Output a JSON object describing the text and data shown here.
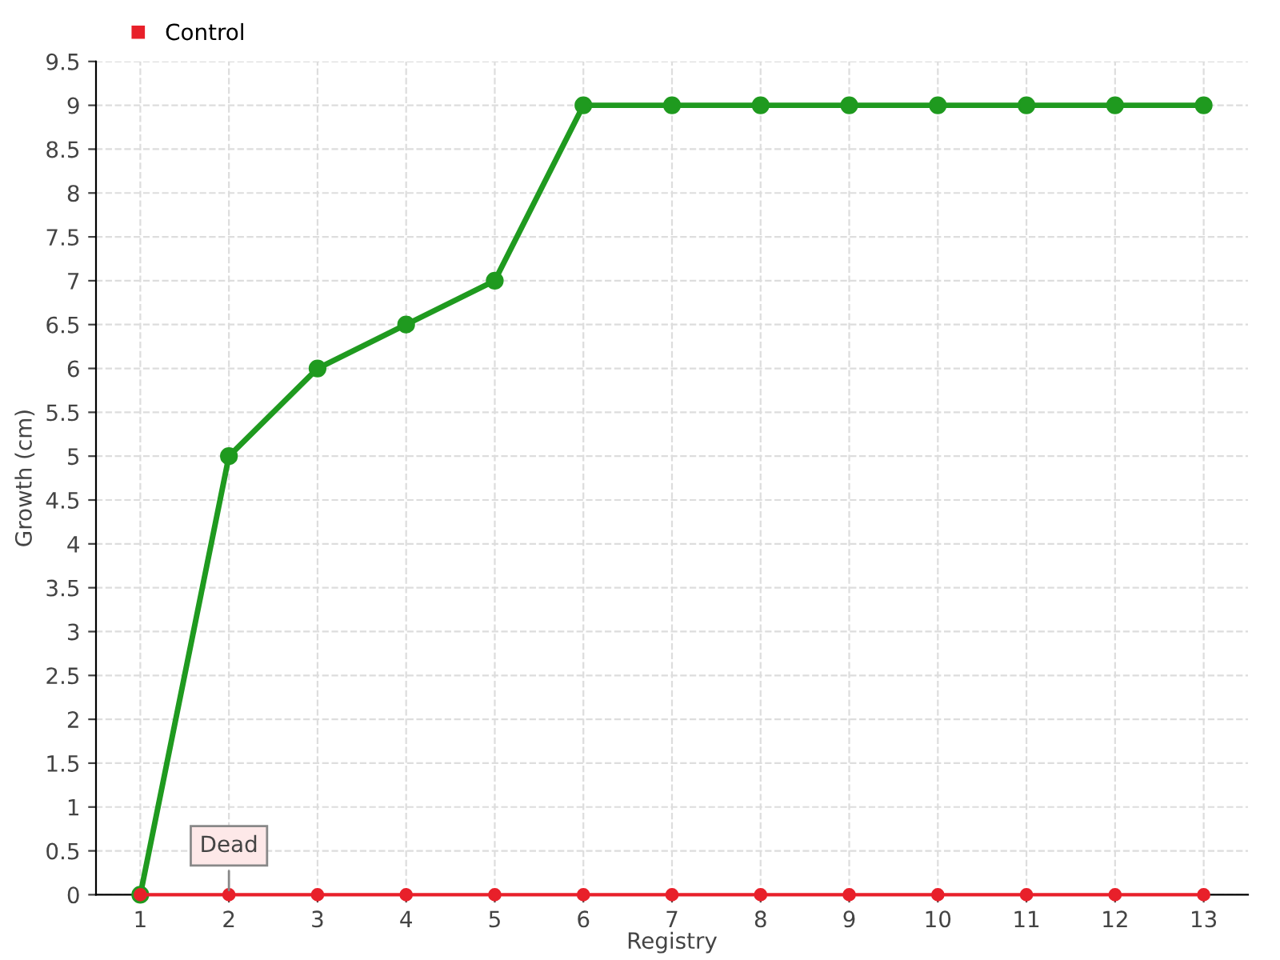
{
  "chart_data": {
    "type": "line",
    "xlabel": "Registry",
    "ylabel": "Growth (cm)",
    "categories": [
      "1",
      "2",
      "3",
      "4",
      "5",
      "6",
      "7",
      "8",
      "9",
      "10",
      "11",
      "12",
      "13"
    ],
    "series": [
      {
        "color": "#1f9a1f",
        "values": [
          0,
          5,
          6,
          6.5,
          7,
          9,
          9,
          9,
          9,
          9,
          9,
          9,
          9
        ]
      },
      {
        "name": "Control",
        "color": "#e8202a",
        "values": [
          0,
          0,
          0,
          0,
          0,
          0,
          0,
          0,
          0,
          0,
          0,
          0,
          0
        ]
      }
    ],
    "ylim": [
      0,
      9.5
    ],
    "yticks": [
      0,
      0.5,
      1,
      1.5,
      2,
      2.5,
      3,
      3.5,
      4,
      4.5,
      5,
      5.5,
      6,
      6.5,
      7,
      7.5,
      8,
      8.5,
      9,
      9.5
    ],
    "grid": true,
    "legend": "top left",
    "marker": "circle",
    "line_style": "solid",
    "annotations": [
      {
        "text": "Dead",
        "x": "2",
        "y": 0
      }
    ]
  }
}
